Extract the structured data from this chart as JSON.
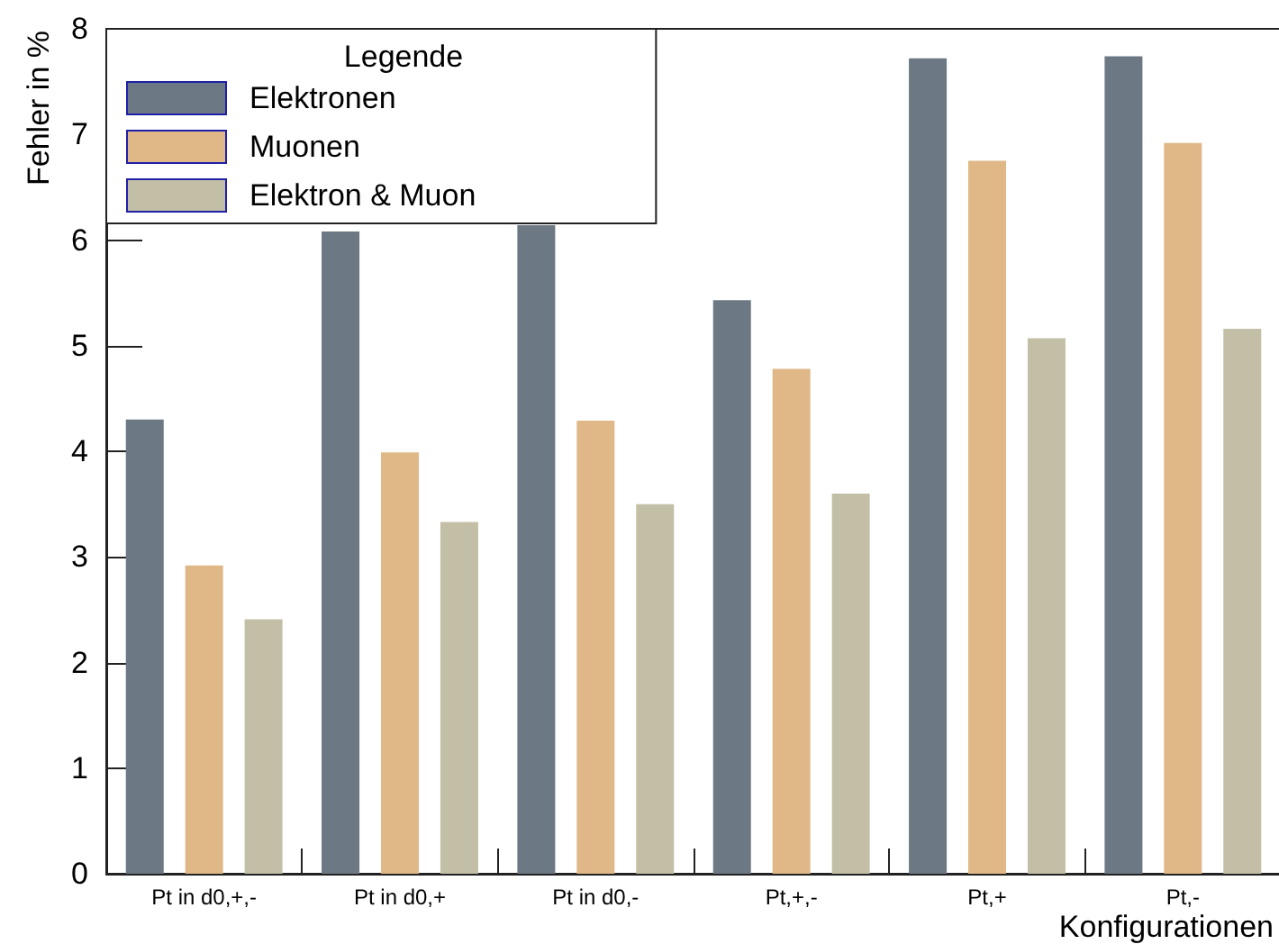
{
  "chart_data": {
    "type": "bar",
    "xlabel": "Konfigurationen",
    "ylabel": "Fehler in %",
    "legend_title": "Legende",
    "categories": [
      "Pt in d0,+,-",
      "Pt in d0,+",
      "Pt in d0,-",
      "Pt,+,-",
      "Pt,+",
      "Pt,-"
    ],
    "series": [
      {
        "name": "Elektronen",
        "color": "#6c7883",
        "values": [
          4.3,
          6.08,
          6.14,
          5.43,
          7.72,
          7.74
        ]
      },
      {
        "name": "Muonen",
        "color": "#e0b888",
        "values": [
          2.92,
          3.99,
          4.29,
          4.78,
          6.75,
          6.92
        ]
      },
      {
        "name": "Elektron & Muon",
        "color": "#c2bfa6",
        "values": [
          2.41,
          3.33,
          3.5,
          3.6,
          5.07,
          5.16
        ]
      }
    ],
    "ylim": [
      0,
      8
    ],
    "yticks": [
      0,
      1,
      2,
      3,
      4,
      5,
      6,
      7,
      8
    ],
    "grid": false,
    "legend": "top left"
  }
}
